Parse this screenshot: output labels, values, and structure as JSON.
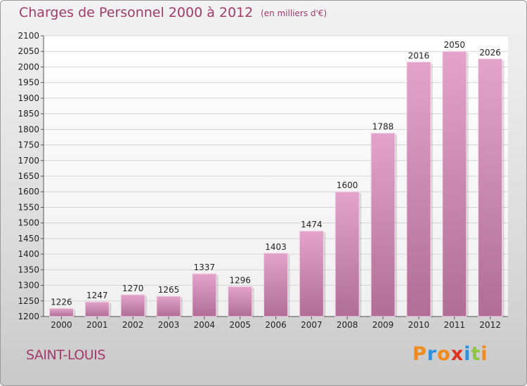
{
  "chart_data": {
    "type": "bar",
    "title": "Charges de Personnel 2000 à 2012",
    "subtitle": "(en milliers d'€)",
    "categories": [
      "2000",
      "2001",
      "2002",
      "2003",
      "2004",
      "2005",
      "2006",
      "2007",
      "2008",
      "2009",
      "2010",
      "2011",
      "2012"
    ],
    "values": [
      1226,
      1247,
      1270,
      1265,
      1337,
      1296,
      1403,
      1474,
      1600,
      1788,
      2016,
      2050,
      2026
    ],
    "ylim": [
      1200,
      2100
    ],
    "yticks": [
      1200,
      1250,
      1300,
      1350,
      1400,
      1450,
      1500,
      1550,
      1600,
      1650,
      1700,
      1750,
      1800,
      1850,
      1900,
      1950,
      2000,
      2050,
      2100
    ],
    "grid": true,
    "xlabel": "",
    "ylabel": ""
  },
  "footer": {
    "place": "SAINT-LOUIS",
    "logo_letters": [
      "P",
      "r",
      "o",
      "x",
      "i",
      "t",
      "i"
    ]
  },
  "colors": {
    "bar_top": "#e3a3cb",
    "bar_bottom": "#b06e97",
    "title": "#a23a6a",
    "logo": [
      "#f08a1c",
      "#2f8fd8",
      "#f08a1c",
      "#e0301e",
      "#2f8fd8",
      "#8dc63f",
      "#f08a1c"
    ]
  }
}
